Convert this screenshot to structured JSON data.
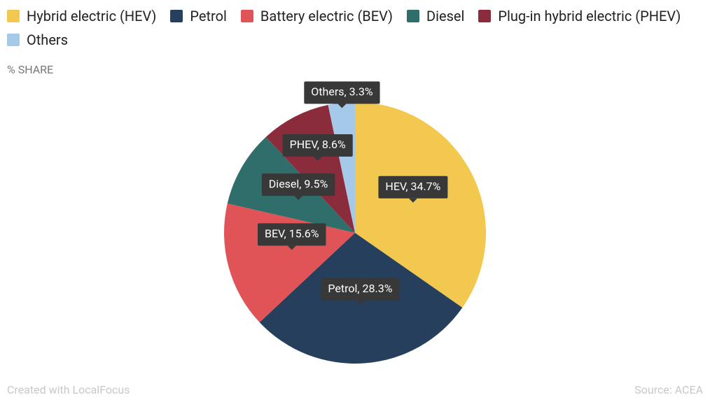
{
  "chart_data": {
    "type": "pie",
    "y_label": "% SHARE",
    "categories": [
      "Hybrid electric (HEV)",
      "Petrol",
      "Battery electric (BEV)",
      "Diesel",
      "Plug-in hybrid electric (PHEV)",
      "Others"
    ],
    "values": [
      34.7,
      28.3,
      15.6,
      9.5,
      8.6,
      3.3
    ],
    "value_labels": [
      "HEV, 34.7%",
      "Petrol, 28.3%",
      "BEV, 15.6%",
      "Diesel, 9.5%",
      "PHEV, 8.6%",
      "Others, 3.3%"
    ],
    "colors": [
      "#f2c94e",
      "#263f5d",
      "#e05457",
      "#2f6e6a",
      "#8a2c3b",
      "#a5c9e8"
    ],
    "legend": "top-left",
    "credit": "Created with LocalFocus",
    "source": "Source:  ACEA"
  }
}
